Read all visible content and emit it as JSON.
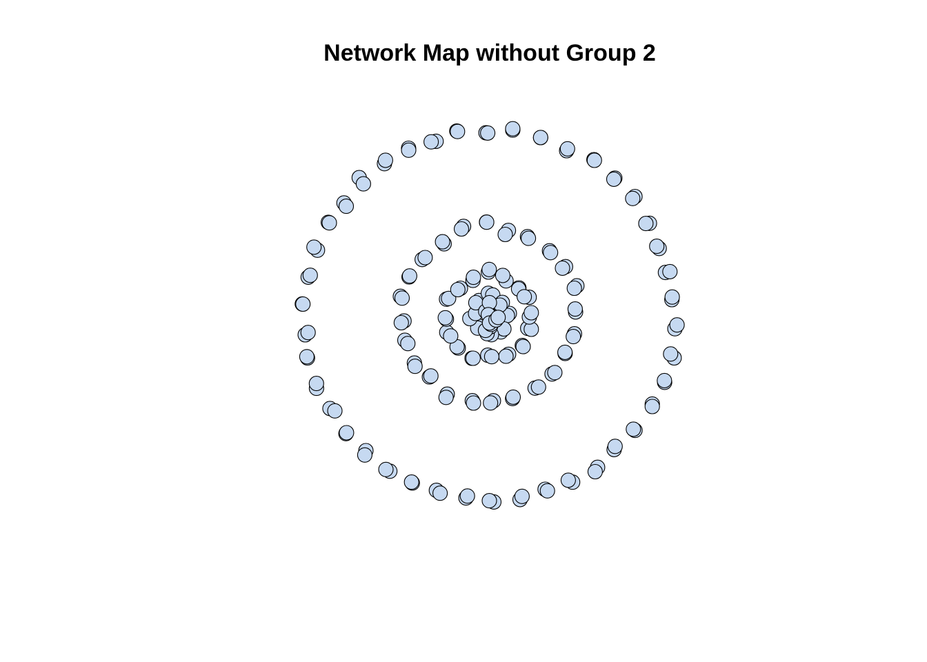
{
  "title": "Network Map without Group 2",
  "colors": {
    "background": "#ffffff",
    "node_fill": "#c6d9f1",
    "node_stroke": "#000000"
  },
  "network": {
    "layout": "concentric rings",
    "edges": [],
    "node_pairs_per_ring": [
      8,
      16,
      24,
      42
    ]
  }
}
